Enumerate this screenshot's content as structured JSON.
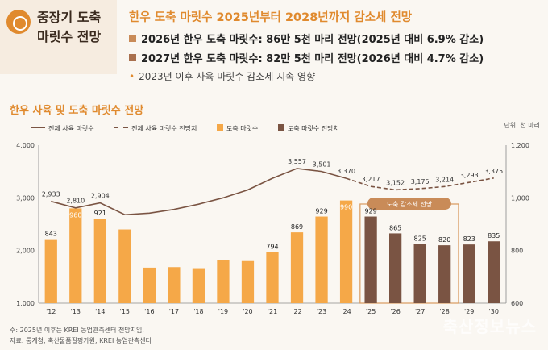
{
  "header": {
    "box_title_line1": "중장기 도축",
    "box_title_line2": "마릿수 전망",
    "main_title": "한우 도축 마릿수 2025년부터 2028년까지 감소세 전망",
    "bullet1": "2026년 한우 도축 마릿수: 86만 5천 마리 전망(2025년 대비 6.9% 감소)",
    "bullet2": "2027년 한우 도축 마릿수: 82만 5천 마리 전망(2026년 대비 4.7% 감소)",
    "sub_bullet": "2023년 이후 사육 마릿수 감소세 지속 영향"
  },
  "chart_title": "한우 사육 및 도축 마릿수 전망",
  "unit": "단위: 천 마리",
  "legend": {
    "line_actual": "전체 사육 마릿수",
    "line_forecast": "전체 사육 마릿수 전망치",
    "bar_actual": "도축 마릿수",
    "bar_forecast": "도축 마릿수 전망치"
  },
  "annotation_box": "도축 감소세 전망",
  "footnote1": "주: 2025년 이후는 KREI 농업관측센터 전망치임.",
  "footnote2": "자료: 통계청, 축산물품질평가원, KREI 농업관측센터",
  "watermark": "축산정보뉴스",
  "colors": {
    "accent": "#e08a2e",
    "bar_actual": "#f5a848",
    "bar_forecast": "#7a5443",
    "line": "#7a5443"
  },
  "chart_data": {
    "type": "bar",
    "categories": [
      "'12",
      "'13",
      "'14",
      "'15",
      "'16",
      "'17",
      "'18",
      "'19",
      "'20",
      "'21",
      "'22",
      "'23",
      "'24",
      "'25",
      "'26",
      "'27",
      "'28",
      "'29",
      "'30"
    ],
    "series": [
      {
        "name": "도축 마릿수",
        "axis": "right",
        "values": [
          843,
          960,
          921,
          880,
          735,
          737,
          733,
          763,
          760,
          794,
          869,
          929,
          990,
          null,
          null,
          null,
          null,
          null,
          null
        ]
      },
      {
        "name": "도축 마릿수 전망치",
        "axis": "right",
        "values": [
          null,
          null,
          null,
          null,
          null,
          null,
          null,
          null,
          null,
          null,
          null,
          null,
          null,
          929,
          865,
          825,
          820,
          823,
          835
        ]
      },
      {
        "name": "전체 사육 마릿수",
        "axis": "left",
        "type": "line",
        "values": [
          2933,
          2810,
          2904,
          2680,
          2710,
          2780,
          2880,
          3000,
          3150,
          3370,
          3557,
          3501,
          3370,
          null,
          null,
          null,
          null,
          null,
          null
        ]
      },
      {
        "name": "전체 사육 마릿수 전망치",
        "axis": "left",
        "type": "line",
        "dashed": true,
        "values": [
          null,
          null,
          null,
          null,
          null,
          null,
          null,
          null,
          null,
          null,
          null,
          null,
          3370,
          3217,
          3152,
          3175,
          3214,
          3293,
          3375
        ]
      }
    ],
    "bar_labels": [
      "843",
      "960",
      "921",
      "",
      "",
      "",
      "",
      "",
      "",
      "794",
      "869",
      "929",
      "990",
      "929",
      "865",
      "825",
      "820",
      "823",
      "835"
    ],
    "line_labels": [
      "2,933",
      "2,810",
      "2,904",
      "",
      "",
      "",
      "",
      "",
      "",
      "",
      "3,557",
      "3,501",
      "3,370",
      "3,217",
      "3,152",
      "3,175",
      "3,214",
      "3,293",
      "3,375"
    ],
    "left_axis": {
      "ylim": [
        1000,
        4000
      ],
      "ticks": [
        "1,000",
        "2,000",
        "3,000",
        "4,000"
      ]
    },
    "right_axis": {
      "ylim": [
        600,
        1200
      ],
      "ticks": [
        "600",
        "800",
        "1,000",
        "1,200"
      ]
    }
  }
}
